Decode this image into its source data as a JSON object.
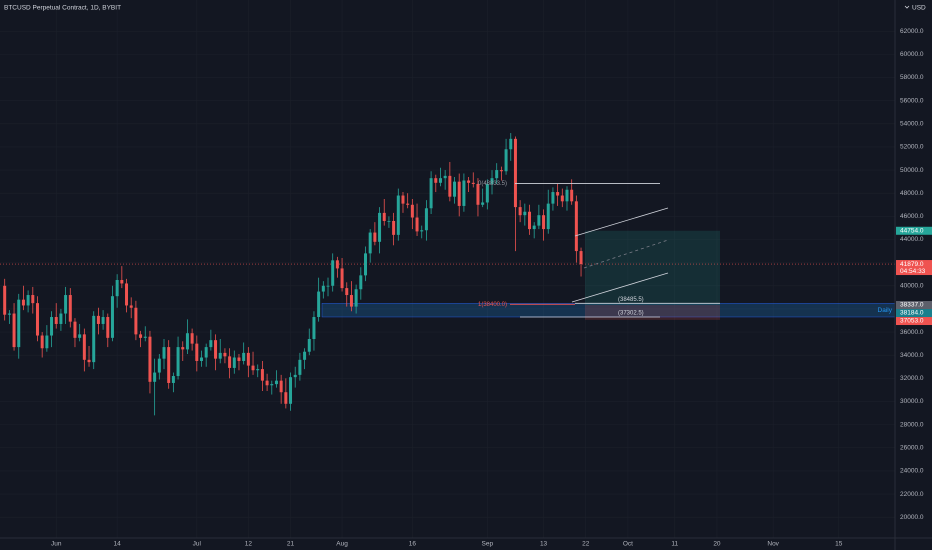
{
  "chart_data": {
    "type": "candlestick",
    "title": "BTCUSD Perpetual Contract, 1D, BYBIT",
    "currency": "USD",
    "up_color": "#26a69a",
    "down_color": "#ef5350",
    "x": [
      "05-21",
      "05-22",
      "05-23",
      "05-24",
      "05-25",
      "05-26",
      "05-27",
      "05-28",
      "05-29",
      "05-30",
      "05-31",
      "06-01",
      "06-02",
      "06-03",
      "06-04",
      "06-05",
      "06-06",
      "06-07",
      "06-08",
      "06-09",
      "06-10",
      "06-11",
      "06-12",
      "06-13",
      "06-14",
      "06-15",
      "06-16",
      "06-17",
      "06-18",
      "06-19",
      "06-20",
      "06-21",
      "06-22",
      "06-23",
      "06-24",
      "06-25",
      "06-26",
      "06-27",
      "06-28",
      "06-29",
      "06-30",
      "07-01",
      "07-02",
      "07-03",
      "07-04",
      "07-05",
      "07-06",
      "07-07",
      "07-08",
      "07-09",
      "07-10",
      "07-11",
      "07-12",
      "07-13",
      "07-14",
      "07-15",
      "07-16",
      "07-17",
      "07-18",
      "07-19",
      "07-20",
      "07-21",
      "07-22",
      "07-23",
      "07-24",
      "07-25",
      "07-26",
      "07-27",
      "07-28",
      "07-29",
      "07-30",
      "07-31",
      "08-01",
      "08-02",
      "08-03",
      "08-04",
      "08-05",
      "08-06",
      "08-07",
      "08-08",
      "08-09",
      "08-10",
      "08-11",
      "08-12",
      "08-13",
      "08-14",
      "08-15",
      "08-16",
      "08-17",
      "08-18",
      "08-19",
      "08-20",
      "08-21",
      "08-22",
      "08-23",
      "08-24",
      "08-25",
      "08-26",
      "08-27",
      "08-28",
      "08-29",
      "08-30",
      "08-31",
      "09-01",
      "09-02",
      "09-03",
      "09-04",
      "09-05",
      "09-06",
      "09-07",
      "09-08",
      "09-09",
      "09-10",
      "09-11",
      "09-12",
      "09-13",
      "09-14",
      "09-15",
      "09-16",
      "09-17",
      "09-18",
      "09-19",
      "09-20",
      "09-21"
    ],
    "open": [
      40000,
      37500,
      37600,
      34700,
      38800,
      38300,
      39200,
      38500,
      35700,
      34600,
      35700,
      37300,
      36700,
      37600,
      39200,
      36900,
      35500,
      35800,
      33600,
      33400,
      37400,
      36700,
      37300,
      35500,
      39100,
      40500,
      40200,
      38300,
      38100,
      35800,
      35500,
      35600,
      31700,
      32500,
      33700,
      34700,
      31600,
      32200,
      34700,
      34500,
      35900,
      35000,
      33500,
      33800,
      34700,
      35300,
      33700,
      34200,
      33900,
      32900,
      33800,
      33500,
      34200,
      33100,
      32700,
      32800,
      31800,
      31400,
      31500,
      31800,
      30800,
      29800,
      32100,
      32300,
      33600,
      34300,
      35400,
      37300,
      39500,
      40000,
      40000,
      42200,
      41500,
      39800,
      39200,
      38200,
      39700,
      40900,
      42800,
      44600,
      43800,
      46300,
      45600,
      45600,
      44400,
      47800,
      47100,
      47000,
      45900,
      44700,
      44800,
      46700,
      49300,
      48900,
      49300,
      49500,
      47700,
      49000,
      46900,
      49100,
      48900,
      48800,
      47000,
      47200,
      48800,
      49300,
      50000,
      49900,
      51800,
      52700,
      46800,
      46100,
      46400,
      44900,
      45200,
      46100,
      44900,
      47100,
      48100,
      47800,
      47300,
      48300,
      47300,
      43000
    ],
    "high": [
      40600,
      37900,
      38500,
      39300,
      40000,
      39600,
      39900,
      39100,
      36000,
      36600,
      37800,
      38500,
      38000,
      39900,
      39800,
      37200,
      36700,
      36300,
      34800,
      37800,
      38100,
      37900,
      37600,
      40000,
      41000,
      41700,
      40600,
      39000,
      38700,
      36100,
      36500,
      36100,
      33700,
      34100,
      35400,
      35300,
      32500,
      35600,
      35200,
      37100,
      36300,
      35700,
      34400,
      35000,
      36200,
      35800,
      35400,
      34600,
      34600,
      34400,
      34100,
      35100,
      34700,
      34300,
      33200,
      33500,
      32400,
      31800,
      32700,
      32300,
      32000,
      32500,
      33000,
      34200,
      34600,
      36300,
      37800,
      40700,
      40400,
      40700,
      42800,
      42500,
      42400,
      40300,
      40400,
      40100,
      41600,
      43400,
      44900,
      45500,
      46800,
      47500,
      46000,
      46300,
      48400,
      48100,
      48000,
      47500,
      47100,
      45200,
      47400,
      49900,
      49600,
      50200,
      50000,
      50700,
      49400,
      49700,
      49700,
      49400,
      49800,
      49300,
      48400,
      49200,
      50000,
      50600,
      50300,
      52700,
      53200,
      52900,
      47400,
      47100,
      47000,
      45500,
      47000,
      46600,
      48300,
      48500,
      48800,
      48400,
      48600,
      49200,
      47800,
      43300
    ],
    "low": [
      37000,
      36700,
      34400,
      33700,
      37900,
      37700,
      37600,
      35200,
      33800,
      34300,
      34700,
      36300,
      36100,
      36700,
      36400,
      34700,
      35200,
      32600,
      33000,
      32800,
      35800,
      36200,
      34700,
      35200,
      38100,
      39800,
      37700,
      37200,
      35300,
      34700,
      35200,
      30700,
      28800,
      31900,
      32800,
      31100,
      30800,
      31900,
      33500,
      34100,
      34400,
      32600,
      33000,
      33000,
      34400,
      32700,
      33300,
      33300,
      32000,
      32400,
      32700,
      33200,
      32100,
      32300,
      32100,
      30900,
      30900,
      30600,
      31200,
      29800,
      29400,
      29200,
      31200,
      31800,
      32800,
      34000,
      34400,
      36900,
      38900,
      39100,
      39500,
      40700,
      39500,
      38200,
      37800,
      37600,
      38800,
      40400,
      42000,
      43500,
      42800,
      45200,
      45000,
      43500,
      43900,
      46300,
      46700,
      44900,
      44300,
      44100,
      43900,
      46200,
      48100,
      48600,
      48300,
      47300,
      47100,
      46000,
      46400,
      48100,
      48500,
      46000,
      46800,
      46600,
      47900,
      48800,
      49100,
      49600,
      50800,
      43000,
      45500,
      45200,
      44400,
      44100,
      44900,
      43900,
      44500,
      46500,
      46900,
      46800,
      46500,
      47000,
      42000,
      40800
    ],
    "close": [
      37500,
      37600,
      34700,
      38800,
      38300,
      39200,
      38500,
      35700,
      34600,
      35700,
      37300,
      36700,
      37600,
      39200,
      36900,
      35500,
      35800,
      33600,
      33400,
      37400,
      36700,
      37300,
      35500,
      39100,
      40500,
      40200,
      38300,
      38100,
      35800,
      35500,
      35600,
      31700,
      32500,
      33700,
      34700,
      31600,
      32200,
      34700,
      34500,
      35900,
      35000,
      33500,
      33800,
      34700,
      35300,
      33700,
      34200,
      33900,
      32900,
      33800,
      33500,
      34200,
      33100,
      32700,
      32800,
      31800,
      31400,
      31500,
      31800,
      30800,
      29800,
      32100,
      32300,
      33600,
      34300,
      35400,
      37300,
      39500,
      40000,
      40000,
      42200,
      41500,
      39800,
      39200,
      38200,
      39700,
      40900,
      42800,
      44600,
      43800,
      46300,
      45600,
      45600,
      44400,
      47800,
      47100,
      47000,
      45900,
      44700,
      44800,
      46700,
      49300,
      48900,
      49300,
      49500,
      47700,
      49000,
      46900,
      49100,
      48900,
      48800,
      47000,
      47200,
      48800,
      49300,
      50000,
      49900,
      51800,
      52700,
      46800,
      46100,
      46400,
      44900,
      45200,
      46100,
      44900,
      47100,
      48100,
      47800,
      47300,
      48300,
      47300,
      43000,
      41879
    ],
    "xlim": [
      "05-20",
      "11-27"
    ],
    "xticks": [
      {
        "value": "06-01",
        "label": "Jun"
      },
      {
        "value": "06-14",
        "label": "14"
      },
      {
        "value": "07-01",
        "label": "Jul"
      },
      {
        "value": "07-12",
        "label": "12"
      },
      {
        "value": "07-21",
        "label": "21"
      },
      {
        "value": "08-01",
        "label": "Aug"
      },
      {
        "value": "08-16",
        "label": "16"
      },
      {
        "value": "09-01",
        "label": "Sep"
      },
      {
        "value": "09-13",
        "label": "13"
      },
      {
        "value": "09-22",
        "label": "22"
      },
      {
        "value": "10-01",
        "label": "Oct"
      },
      {
        "value": "10-11",
        "label": "11"
      },
      {
        "value": "10-20",
        "label": "20"
      },
      {
        "value": "11-01",
        "label": "Nov"
      },
      {
        "value": "11-15",
        "label": "15"
      }
    ],
    "ylim": [
      18200,
      64700
    ],
    "yticks": [
      {
        "value": 20000,
        "label": "20000.0"
      },
      {
        "value": 22000,
        "label": "22000.0"
      },
      {
        "value": 24000,
        "label": "24000.0"
      },
      {
        "value": 26000,
        "label": "26000.0"
      },
      {
        "value": 28000,
        "label": "28000.0"
      },
      {
        "value": 30000,
        "label": "30000.0"
      },
      {
        "value": 32000,
        "label": "32000.0"
      },
      {
        "value": 34000,
        "label": "34000.0"
      },
      {
        "value": 36000,
        "label": "36000.0"
      },
      {
        "value": 38000,
        "label": "38000.0"
      },
      {
        "value": 40000,
        "label": "40000.0"
      },
      {
        "value": 42000,
        "label": "42000.0"
      },
      {
        "value": 44000,
        "label": "44000.0"
      },
      {
        "value": 46000,
        "label": "46000.0"
      },
      {
        "value": 48000,
        "label": "48000.0"
      },
      {
        "value": 50000,
        "label": "50000.0"
      },
      {
        "value": 52000,
        "label": "52000.0"
      },
      {
        "value": 54000,
        "label": "54000.0"
      },
      {
        "value": 56000,
        "label": "56000.0"
      },
      {
        "value": 58000,
        "label": "58000.0"
      },
      {
        "value": 60000,
        "label": "60000.0"
      },
      {
        "value": 62000,
        "label": "62000.0"
      }
    ],
    "grid": true,
    "levels": [
      {
        "value": 48833.5,
        "label": "0(48833.5)"
      },
      {
        "value": 38400,
        "label": "1(38400.0)"
      },
      {
        "value": 38485.5,
        "label": "(38485.5)"
      },
      {
        "value": 37302.5,
        "label": "(37302.5)"
      }
    ],
    "zone_label": "Daily",
    "price_labels": [
      {
        "value": 44754,
        "label": "44754.0",
        "color": "#26a69a"
      },
      {
        "value": 41879,
        "label": "41879.0",
        "color": "#ef5350"
      },
      {
        "value": 38337,
        "label": "38337.0",
        "color": "#5d606b"
      },
      {
        "value": 38184,
        "label": "38184.0",
        "color": "#1b7f8c"
      },
      {
        "value": 37053,
        "label": "37053.0",
        "color": "#ef5350"
      }
    ],
    "countdown": "04:54:33"
  }
}
